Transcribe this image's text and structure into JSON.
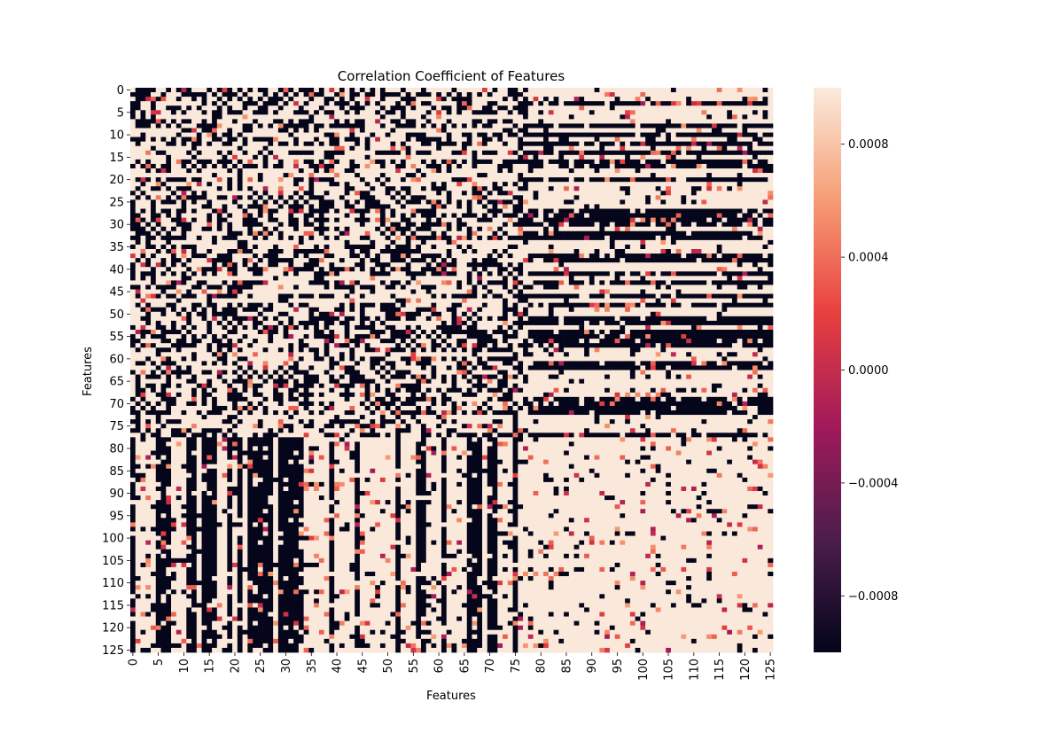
{
  "chart_data": {
    "type": "heatmap",
    "title": "Correlation Coefficient of Features",
    "xlabel": "Features",
    "ylabel": "Features",
    "n_features": 126,
    "x_tick_labels": [
      "0",
      "5",
      "10",
      "15",
      "20",
      "25",
      "30",
      "35",
      "40",
      "45",
      "50",
      "55",
      "60",
      "65",
      "70",
      "75",
      "80",
      "85",
      "90",
      "95",
      "100",
      "105",
      "110",
      "115",
      "120",
      "125"
    ],
    "y_tick_labels": [
      "0",
      "5",
      "10",
      "15",
      "20",
      "25",
      "30",
      "35",
      "40",
      "45",
      "50",
      "55",
      "60",
      "65",
      "70",
      "75",
      "80",
      "85",
      "90",
      "95",
      "100",
      "105",
      "110",
      "115",
      "120",
      "125"
    ],
    "colorbar": {
      "vmin": -0.001,
      "vmax": 0.001,
      "tick_labels": [
        "0.0008",
        "0.0004",
        "0.0000",
        "−0.0004",
        "−0.0008"
      ],
      "tick_values": [
        0.0008,
        0.0004,
        0.0,
        -0.0004,
        -0.0008
      ],
      "colormap": "rocket",
      "color_stops": [
        "#03051a",
        "#4c1d4b",
        "#a11a5b",
        "#e83f3f",
        "#f69c73",
        "#faebdd"
      ]
    },
    "block_summary": [
      {
        "rows": "0-77",
        "cols": "0-77",
        "pattern": "dense checkerboard of near-max and near-min values with scattered mid values"
      },
      {
        "rows": "0-77",
        "cols": "78-125",
        "pattern": "horizontal bands of alternating near-max and near-min values"
      },
      {
        "rows": "78-125",
        "cols": "0-77",
        "pattern": "vertical bands of alternating near-max and near-min values"
      },
      {
        "rows": "78-125",
        "cols": "78-125",
        "pattern": "mostly near-max values with sparse near-min and mid values"
      }
    ]
  }
}
